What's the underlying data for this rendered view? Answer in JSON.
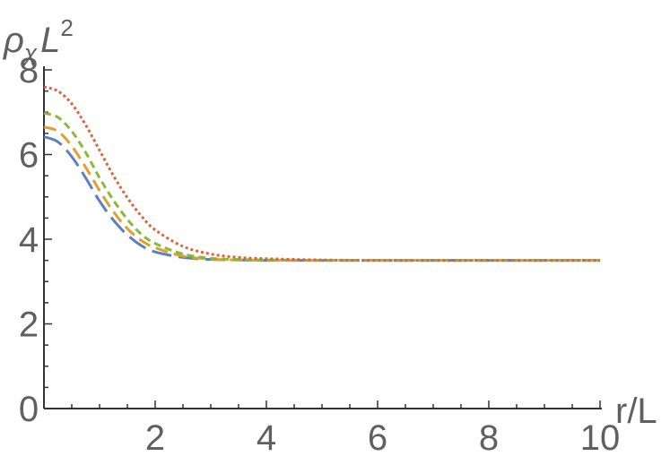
{
  "chart_data": {
    "type": "line",
    "title": "",
    "ylabel": {
      "base": "ρ",
      "sub": "χ",
      "mid": "L",
      "sup": "2"
    },
    "xlabel": "r/L",
    "xlim": [
      0,
      10
    ],
    "ylim": [
      0,
      8
    ],
    "x_ticks": [
      2,
      4,
      6,
      8,
      10
    ],
    "x_tick_labels": [
      "2",
      "4",
      "6",
      "8",
      "10"
    ],
    "y_ticks": [
      0,
      2,
      4,
      6,
      8
    ],
    "y_tick_labels": [
      "0",
      "2",
      "4",
      "6",
      "8"
    ],
    "grid": false,
    "legend": "none",
    "x": [
      0.0,
      0.25,
      0.5,
      0.75,
      1.0,
      1.25,
      1.5,
      1.75,
      2.0,
      2.5,
      3.0,
      3.5,
      4.0,
      5.0,
      6.0,
      7.0,
      8.0,
      9.0,
      10.0
    ],
    "series": [
      {
        "color": "#5b7fc0",
        "dash": "long-dash",
        "values": [
          6.42,
          6.3,
          5.95,
          5.45,
          4.9,
          4.45,
          4.1,
          3.85,
          3.7,
          3.57,
          3.52,
          3.51,
          3.5,
          3.5,
          3.5,
          3.5,
          3.5,
          3.5,
          3.5
        ]
      },
      {
        "color": "#e0a030",
        "dash": "medium-dash",
        "values": [
          6.65,
          6.55,
          6.2,
          5.7,
          5.15,
          4.65,
          4.25,
          3.97,
          3.8,
          3.6,
          3.53,
          3.51,
          3.5,
          3.5,
          3.5,
          3.5,
          3.5,
          3.5,
          3.5
        ]
      },
      {
        "color": "#8cb83a",
        "dash": "short-dash",
        "values": [
          6.98,
          6.88,
          6.55,
          6.05,
          5.45,
          4.92,
          4.47,
          4.12,
          3.9,
          3.65,
          3.55,
          3.52,
          3.51,
          3.5,
          3.5,
          3.5,
          3.5,
          3.5,
          3.5
        ]
      },
      {
        "color": "#e0633a",
        "dash": "dotted",
        "values": [
          7.6,
          7.5,
          7.2,
          6.7,
          6.1,
          5.5,
          4.98,
          4.55,
          4.22,
          3.83,
          3.65,
          3.57,
          3.54,
          3.51,
          3.5,
          3.5,
          3.5,
          3.5,
          3.5
        ]
      }
    ]
  }
}
